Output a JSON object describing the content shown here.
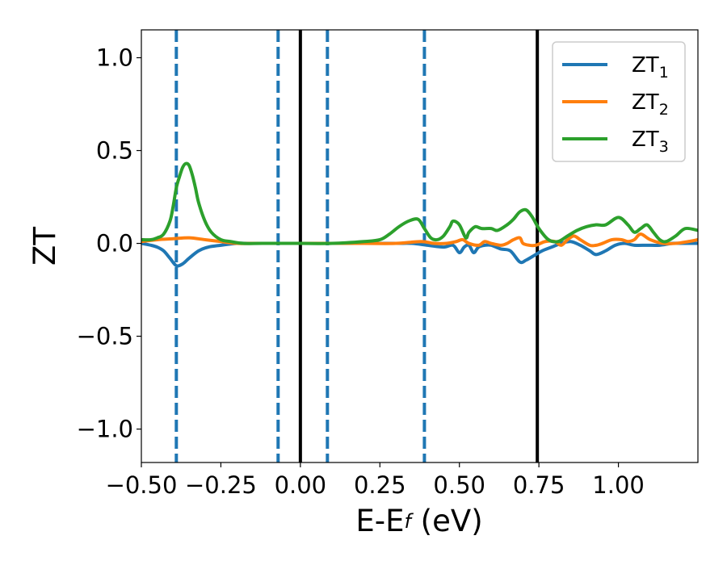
{
  "chart_data": {
    "type": "line",
    "xlabel": "E-E",
    "xlabel_sub": "f",
    "xlabel_unit": " (eV)",
    "ylabel": "ZT",
    "xlim": [
      -0.5,
      1.25
    ],
    "ylim": [
      -1.18,
      1.15
    ],
    "xticks": [
      -0.5,
      -0.25,
      0.0,
      0.25,
      0.5,
      0.75,
      1.0
    ],
    "xtick_labels": [
      "−0.50",
      "−0.25",
      "0.00",
      "0.25",
      "0.50",
      "0.75",
      "1.00"
    ],
    "yticks": [
      1.0,
      0.5,
      0.0,
      -0.5,
      -1.0
    ],
    "ytick_labels": [
      "1.0",
      "0.5",
      "0.0",
      "−0.5",
      "−1.0"
    ],
    "grid": false,
    "legend_position": "top-right",
    "vlines_dashed": [
      -0.39,
      -0.07,
      0.085,
      0.39
    ],
    "vlines_solid": [
      0.0,
      0.745
    ],
    "series": [
      {
        "name": "ZT",
        "name_sub": "1",
        "color": "#1f77b4",
        "x": [
          -0.5,
          -0.47,
          -0.45,
          -0.43,
          -0.41,
          -0.39,
          -0.37,
          -0.35,
          -0.32,
          -0.29,
          -0.25,
          -0.2,
          -0.15,
          -0.1,
          -0.05,
          0.0,
          0.1,
          0.2,
          0.3,
          0.35,
          0.4,
          0.45,
          0.48,
          0.5,
          0.515,
          0.53,
          0.545,
          0.56,
          0.58,
          0.6,
          0.63,
          0.66,
          0.69,
          0.71,
          0.74,
          0.76,
          0.79,
          0.82,
          0.85,
          0.88,
          0.91,
          0.93,
          0.96,
          0.99,
          1.02,
          1.05,
          1.09,
          1.13,
          1.17,
          1.21,
          1.25
        ],
        "y": [
          0.0,
          -0.01,
          -0.02,
          -0.04,
          -0.08,
          -0.12,
          -0.11,
          -0.08,
          -0.04,
          -0.02,
          -0.01,
          0.0,
          0.0,
          0.0,
          0.0,
          0.0,
          0.0,
          0.0,
          0.0,
          0.0,
          -0.01,
          -0.02,
          -0.01,
          -0.05,
          -0.02,
          -0.01,
          -0.05,
          -0.02,
          -0.01,
          -0.01,
          -0.03,
          -0.04,
          -0.1,
          -0.09,
          -0.06,
          -0.04,
          -0.02,
          0.0,
          0.01,
          -0.01,
          -0.04,
          -0.06,
          -0.04,
          -0.01,
          0.0,
          -0.01,
          -0.01,
          -0.01,
          0.0,
          0.0,
          0.0
        ]
      },
      {
        "name": "ZT",
        "name_sub": "2",
        "color": "#ff7f0e",
        "x": [
          -0.5,
          -0.45,
          -0.4,
          -0.35,
          -0.3,
          -0.25,
          -0.2,
          -0.15,
          -0.1,
          -0.05,
          0.0,
          0.1,
          0.2,
          0.3,
          0.38,
          0.42,
          0.46,
          0.49,
          0.51,
          0.53,
          0.56,
          0.58,
          0.6,
          0.63,
          0.65,
          0.67,
          0.69,
          0.7,
          0.72,
          0.74,
          0.77,
          0.8,
          0.82,
          0.84,
          0.86,
          0.88,
          0.91,
          0.93,
          0.95,
          0.98,
          1.01,
          1.03,
          1.05,
          1.07,
          1.1,
          1.14,
          1.18,
          1.22,
          1.25
        ],
        "y": [
          0.01,
          0.02,
          0.025,
          0.03,
          0.02,
          0.01,
          0.0,
          0.0,
          0.0,
          0.0,
          0.0,
          0.0,
          0.0,
          0.0,
          0.01,
          0.0,
          0.0,
          0.01,
          0.02,
          0.0,
          -0.01,
          0.01,
          0.0,
          -0.01,
          0.0,
          0.02,
          0.03,
          0.0,
          -0.01,
          -0.01,
          0.01,
          0.01,
          -0.01,
          0.02,
          0.04,
          0.02,
          -0.01,
          -0.01,
          0.0,
          0.02,
          0.02,
          0.01,
          0.02,
          0.05,
          0.02,
          0.0,
          0.0,
          0.01,
          0.02
        ]
      },
      {
        "name": "ZT",
        "name_sub": "3",
        "color": "#2ca02c",
        "x": [
          -0.5,
          -0.47,
          -0.45,
          -0.43,
          -0.41,
          -0.4,
          -0.39,
          -0.38,
          -0.37,
          -0.36,
          -0.35,
          -0.34,
          -0.33,
          -0.32,
          -0.3,
          -0.28,
          -0.25,
          -0.22,
          -0.18,
          -0.12,
          -0.05,
          0.0,
          0.1,
          0.2,
          0.25,
          0.28,
          0.31,
          0.34,
          0.37,
          0.39,
          0.41,
          0.43,
          0.45,
          0.47,
          0.48,
          0.5,
          0.52,
          0.53,
          0.55,
          0.57,
          0.6,
          0.62,
          0.65,
          0.67,
          0.69,
          0.71,
          0.73,
          0.75,
          0.78,
          0.81,
          0.84,
          0.87,
          0.9,
          0.93,
          0.96,
          1.0,
          1.03,
          1.05,
          1.07,
          1.09,
          1.11,
          1.13,
          1.15,
          1.18,
          1.21,
          1.25
        ],
        "y": [
          0.02,
          0.02,
          0.03,
          0.05,
          0.12,
          0.2,
          0.3,
          0.36,
          0.41,
          0.43,
          0.42,
          0.37,
          0.3,
          0.22,
          0.12,
          0.06,
          0.02,
          0.01,
          0.0,
          0.0,
          0.0,
          0.0,
          0.0,
          0.01,
          0.02,
          0.05,
          0.09,
          0.12,
          0.13,
          0.08,
          0.03,
          0.02,
          0.04,
          0.09,
          0.12,
          0.1,
          0.03,
          0.06,
          0.09,
          0.08,
          0.08,
          0.07,
          0.1,
          0.13,
          0.17,
          0.18,
          0.14,
          0.08,
          0.02,
          0.01,
          0.04,
          0.07,
          0.09,
          0.1,
          0.1,
          0.14,
          0.1,
          0.06,
          0.08,
          0.1,
          0.06,
          0.02,
          0.01,
          0.04,
          0.08,
          0.07
        ]
      }
    ]
  }
}
